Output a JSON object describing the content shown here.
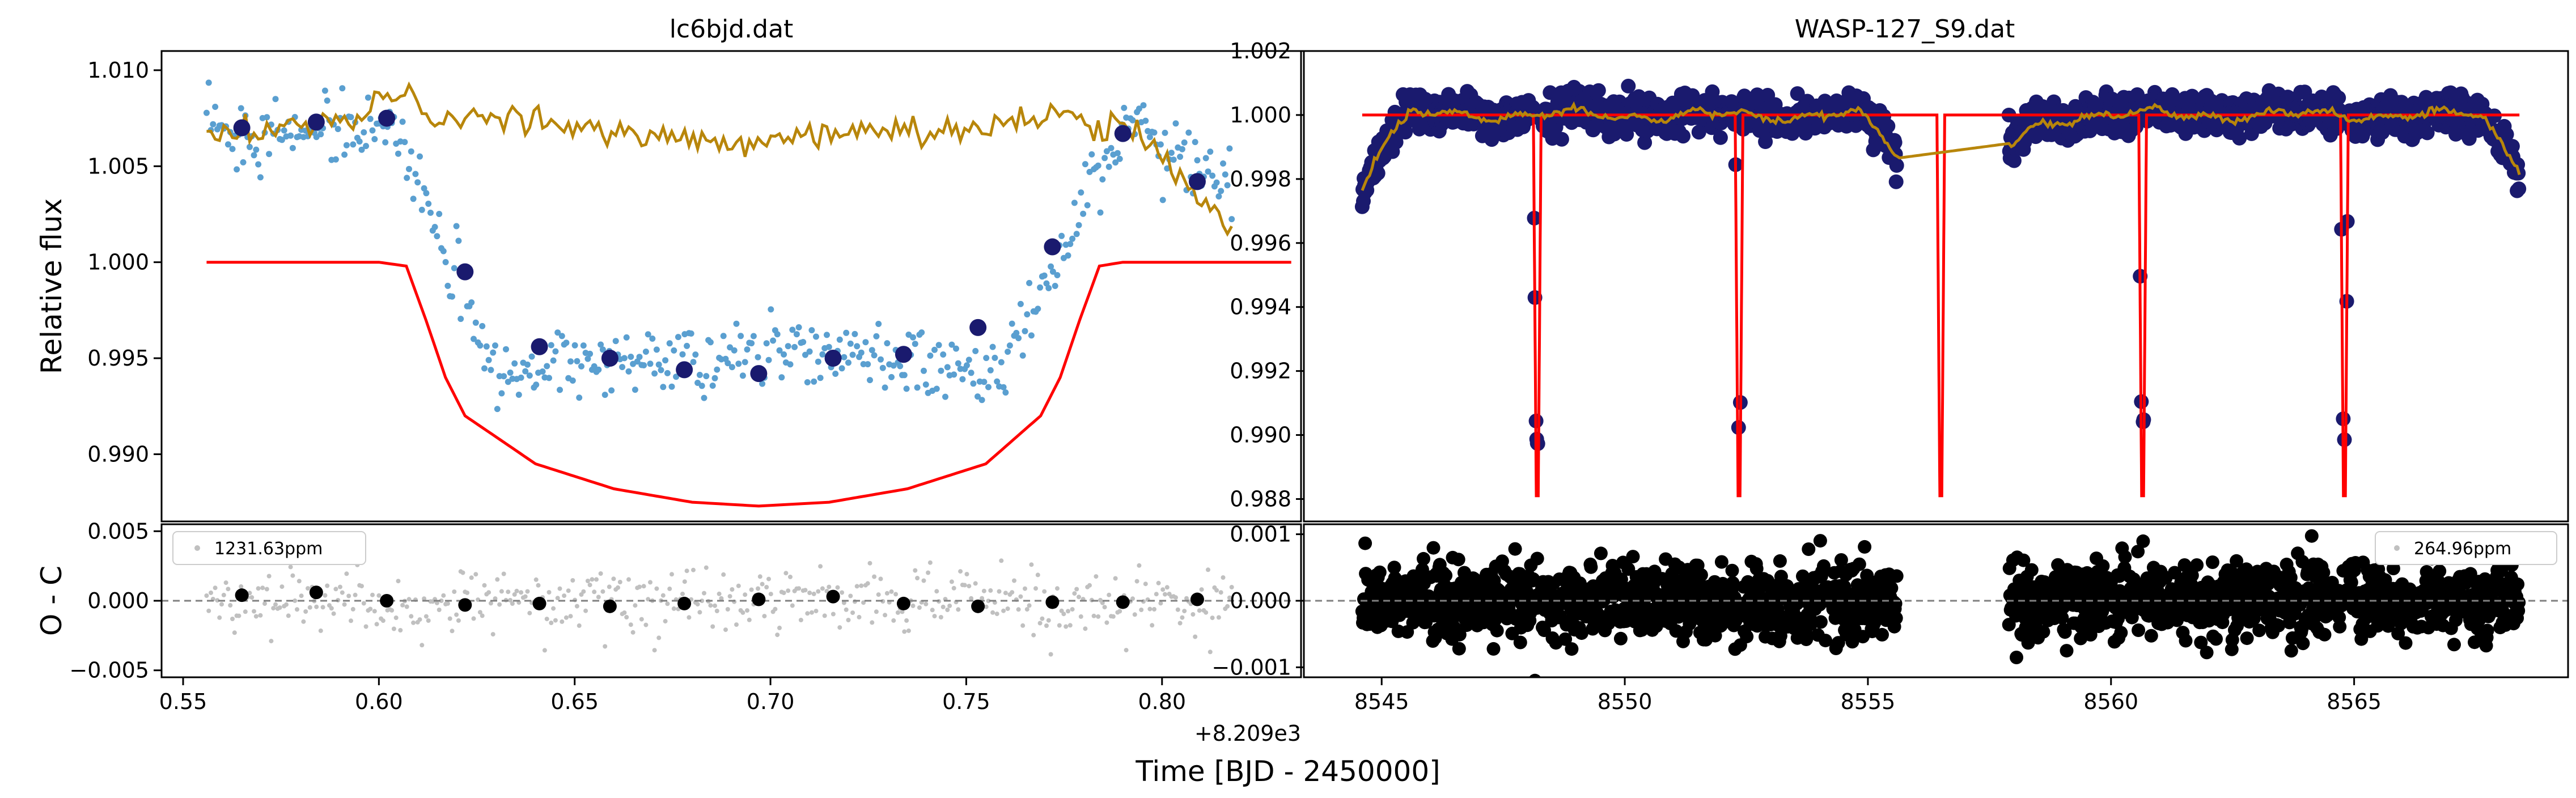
{
  "figure": {
    "xlabel": "Time [BJD - 2450000]",
    "ylabel_top": "Relative flux",
    "ylabel_bottom": "O - C",
    "left_offset_text": "+8.209e3"
  },
  "chart_data": [
    {
      "type": "scatter",
      "panel": "top-left",
      "title": "lc6bjd.dat",
      "xlim": [
        0.5445,
        0.8355
      ],
      "ylim": [
        0.9865,
        1.011
      ],
      "xticks": [
        "0.55",
        "0.60",
        "0.65",
        "0.70",
        "0.75",
        "0.80"
      ],
      "yticks": [
        "0.990",
        "0.995",
        "1.000",
        "1.005",
        "1.010"
      ],
      "series": [
        {
          "kind": "data-points",
          "color": "#5a9fd0"
        },
        {
          "kind": "binned-points",
          "color": "#1a1a6e",
          "x": [
            0.565,
            0.584,
            0.602,
            0.622,
            0.641,
            0.659,
            0.678,
            0.697,
            0.716,
            0.734,
            0.753,
            0.772,
            0.79,
            0.809
          ],
          "y": [
            1.007,
            1.0073,
            1.0075,
            0.9995,
            0.9956,
            0.995,
            0.9944,
            0.9942,
            0.995,
            0.9952,
            0.9966,
            1.0008,
            1.0067,
            1.0042
          ]
        },
        {
          "kind": "detrended-model",
          "color": "#b8860b"
        },
        {
          "kind": "transit-model",
          "color": "#ff0000",
          "x": [
            0.556,
            0.575,
            0.6,
            0.607,
            0.612,
            0.617,
            0.622,
            0.64,
            0.66,
            0.68,
            0.697,
            0.715,
            0.735,
            0.755,
            0.769,
            0.774,
            0.779,
            0.784,
            0.79,
            0.81,
            0.833
          ],
          "y": [
            1.0,
            1.0,
            1.0,
            0.9998,
            0.997,
            0.994,
            0.992,
            0.9895,
            0.9882,
            0.9875,
            0.9873,
            0.9875,
            0.9882,
            0.9895,
            0.992,
            0.994,
            0.997,
            0.9998,
            1.0,
            1.0,
            1.0
          ]
        }
      ]
    },
    {
      "type": "scatter",
      "panel": "bottom-left",
      "ylabel": "O - C",
      "xlim": [
        0.5445,
        0.8355
      ],
      "ylim": [
        -0.0055,
        0.0055
      ],
      "xticks": [
        "0.55",
        "0.60",
        "0.65",
        "0.70",
        "0.75",
        "0.80"
      ],
      "yticks": [
        "−0.005",
        "0.000",
        "0.005"
      ],
      "legend": {
        "label": "1231.63ppm",
        "placement": "upper left"
      },
      "series": [
        {
          "kind": "residuals",
          "color": "#c0c0c0"
        },
        {
          "kind": "binned-residuals",
          "color": "#000000",
          "x": [
            0.565,
            0.584,
            0.602,
            0.622,
            0.641,
            0.659,
            0.678,
            0.697,
            0.716,
            0.734,
            0.753,
            0.772,
            0.79,
            0.809
          ],
          "y": [
            0.0004,
            0.0006,
            0.0,
            -0.0003,
            -0.0002,
            -0.0004,
            -0.0002,
            0.0001,
            0.0003,
            -0.0002,
            -0.0004,
            -0.0001,
            -0.0001,
            0.0001
          ]
        }
      ]
    },
    {
      "type": "scatter",
      "panel": "top-right",
      "title": "WASP-127_S9.dat",
      "xlim": [
        8543.4,
        8569.4
      ],
      "ylim": [
        0.9873,
        1.002
      ],
      "xticks": [],
      "yticks": [
        "0.988",
        "0.990",
        "0.992",
        "0.994",
        "0.996",
        "0.998",
        "1.000",
        "1.002"
      ],
      "transit_times": [
        8548.2,
        8552.35,
        8556.5,
        8560.65,
        8564.8
      ],
      "series": [
        {
          "kind": "data-points",
          "color": "#1a1a6e"
        },
        {
          "kind": "transit-model",
          "color": "#ff0000"
        },
        {
          "kind": "detrended-model",
          "color": "#b8860b"
        }
      ]
    },
    {
      "type": "scatter",
      "panel": "bottom-right",
      "xlim": [
        8543.4,
        8569.4
      ],
      "ylim": [
        -0.00115,
        0.00115
      ],
      "xticks": [
        "8545",
        "8550",
        "8555",
        "8560",
        "8565"
      ],
      "yticks": [
        "−0.001",
        "0.000",
        "0.001"
      ],
      "legend": {
        "label": "264.96ppm",
        "placement": "upper right"
      },
      "series": [
        {
          "kind": "residuals",
          "color": "#000000"
        }
      ]
    }
  ]
}
